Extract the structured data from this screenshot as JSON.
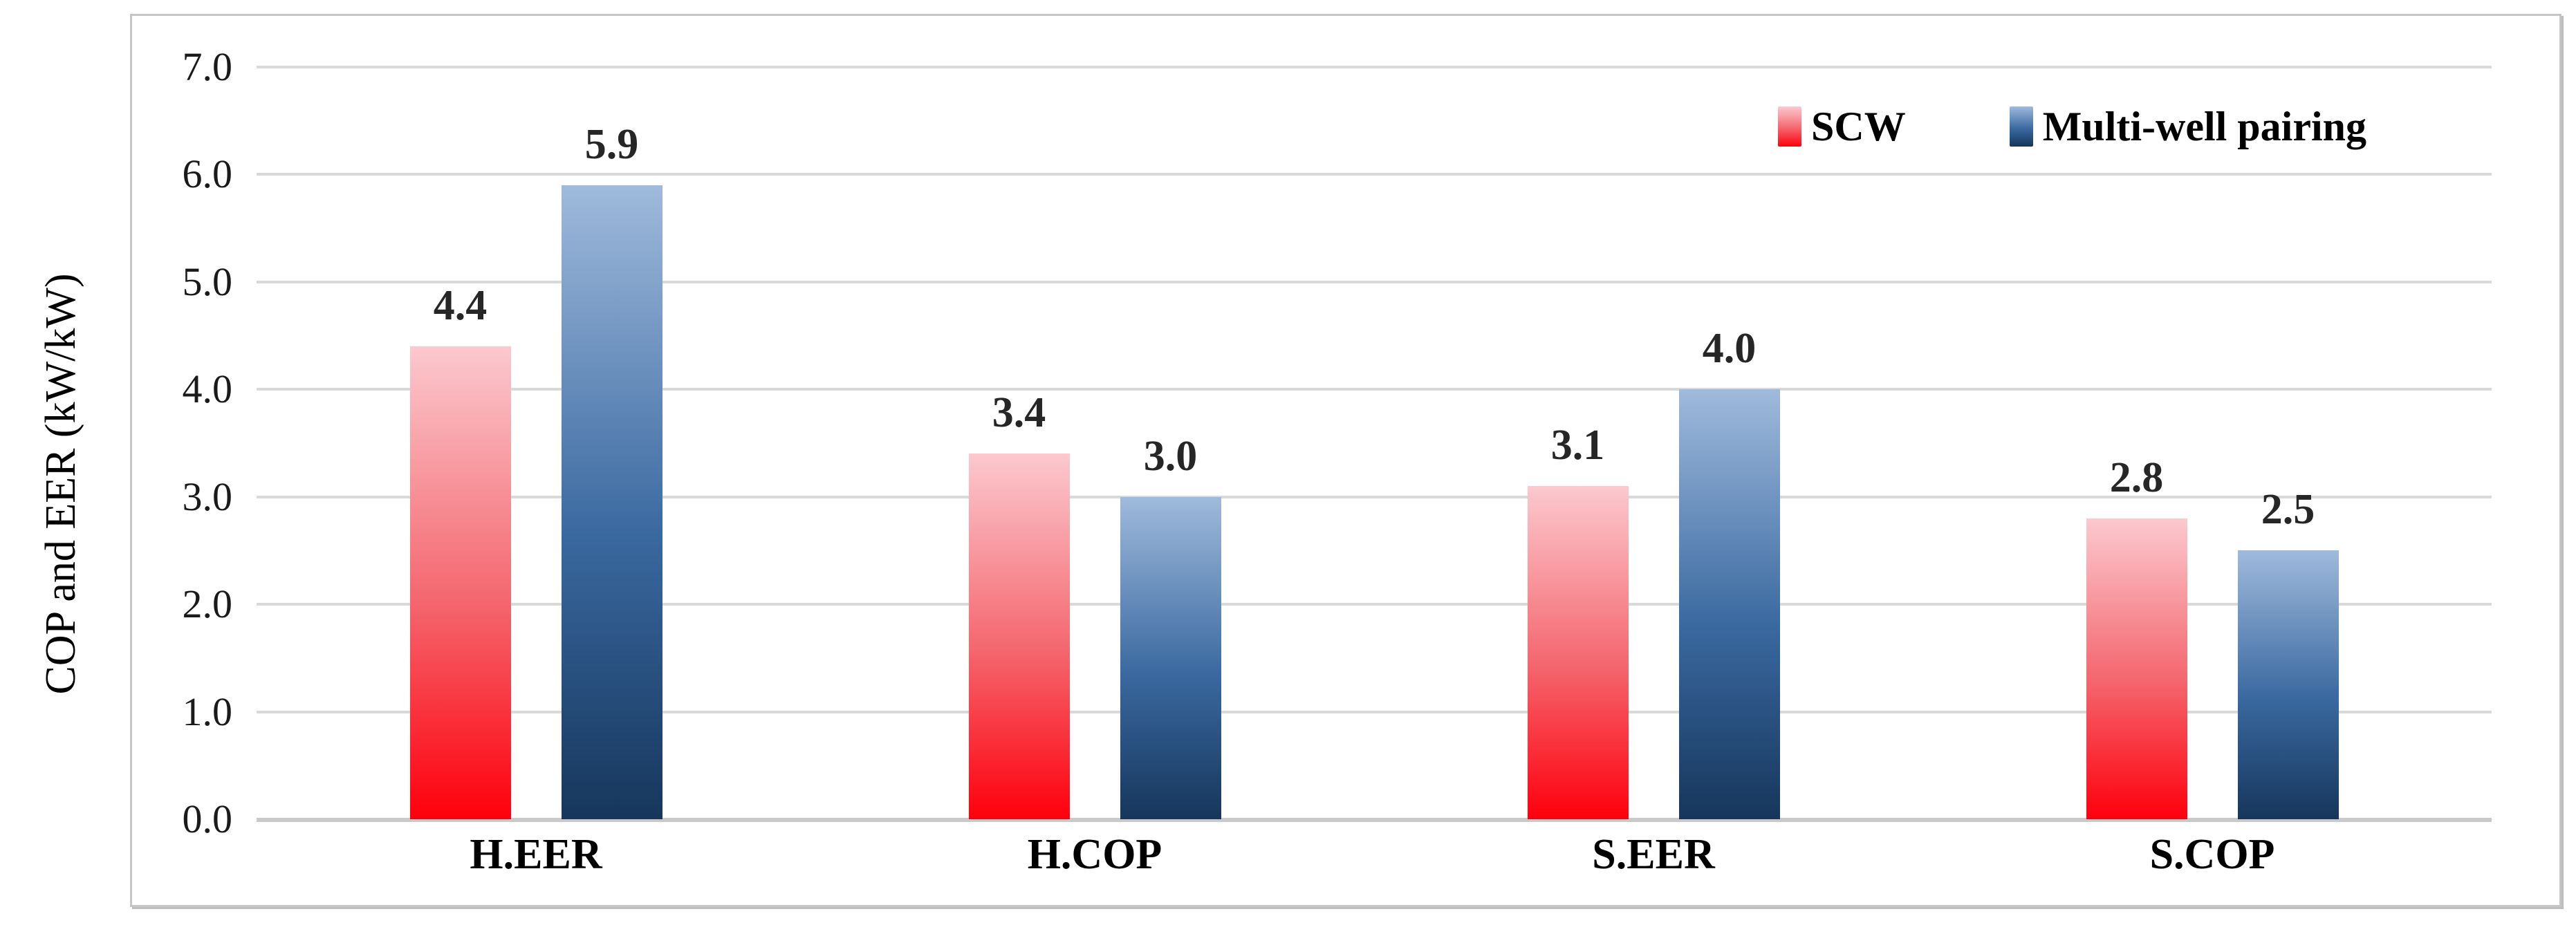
{
  "chart_data": {
    "type": "bar",
    "title": "",
    "ylabel": "COP and EER (kW/kW)",
    "categories": [
      "H.EER",
      "H.COP",
      "S.EER",
      "S.COP"
    ],
    "series": [
      {
        "name": "SCW",
        "values": [
          4.4,
          3.4,
          3.1,
          2.8
        ],
        "gradient": [
          "#FBC9CF",
          "#F4646C",
          "#FE000C"
        ]
      },
      {
        "name": "Multi-well pairing",
        "values": [
          5.9,
          3.0,
          4.0,
          2.5
        ],
        "gradient": [
          "#9FBADC",
          "#3A69A0",
          "#16365C"
        ]
      }
    ],
    "data_labels": [
      [
        "4.4",
        "3.4",
        "3.1",
        "2.8"
      ],
      [
        "5.9",
        "3.0",
        "4.0",
        "2.5"
      ]
    ],
    "ylim": [
      0,
      7
    ],
    "ytick_step": 1.0,
    "ytick_labels": [
      "0.0",
      "1.0",
      "2.0",
      "3.0",
      "4.0",
      "5.0",
      "6.0",
      "7.0"
    ],
    "grid": true,
    "legend_position": "top-right",
    "style_colors": {
      "gridline": "#D9D9D9",
      "axis_baseline": "#C9C9C9",
      "frame_border": "#C6C6C6",
      "tick_text": "#1a1a1a",
      "data_label_text": "#262626",
      "category_text": "#000000",
      "background": "#ffffff"
    }
  }
}
